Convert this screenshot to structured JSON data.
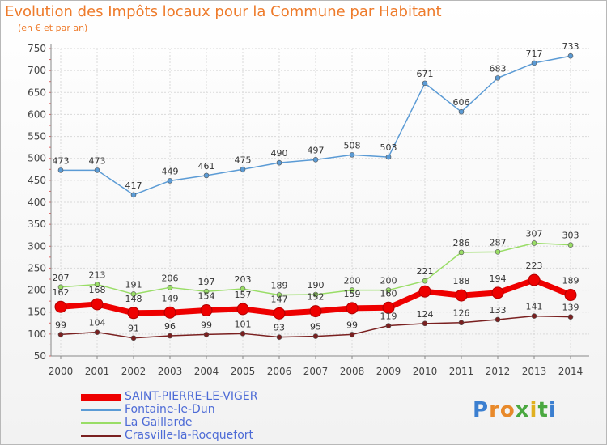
{
  "title": "Evolution des Impôts locaux pour la Commune par Habitant",
  "subtitle": "(en € et par an)",
  "brand": "Proxiti",
  "chart_data": {
    "type": "line",
    "x": [
      2000,
      2001,
      2002,
      2003,
      2004,
      2005,
      2006,
      2007,
      2008,
      2009,
      2010,
      2011,
      2012,
      2013,
      2014
    ],
    "ylim": [
      50,
      750
    ],
    "yticks": [
      50,
      100,
      150,
      200,
      250,
      300,
      350,
      400,
      450,
      500,
      550,
      600,
      650,
      700,
      750
    ],
    "grid": true,
    "legend_position": "bottom",
    "series": [
      {
        "name": "SAINT-PIERRE-LE-VIGER",
        "color": "#ee0000",
        "values": [
          162,
          168,
          148,
          149,
          154,
          157,
          147,
          152,
          159,
          160,
          197,
          188,
          194,
          223,
          189
        ],
        "labels": [
          162,
          168,
          148,
          149,
          154,
          157,
          147,
          152,
          159,
          160,
          null,
          188,
          194,
          223,
          189
        ]
      },
      {
        "name": "Fontaine-le-Dun",
        "color": "#5b9bd5",
        "values": [
          473,
          473,
          417,
          449,
          461,
          475,
          490,
          497,
          508,
          503,
          671,
          606,
          683,
          717,
          733
        ]
      },
      {
        "name": "La Gaillarde",
        "color": "#99dd66",
        "values": [
          207,
          213,
          191,
          206,
          197,
          203,
          189,
          190,
          200,
          200,
          221,
          286,
          287,
          307,
          303
        ]
      },
      {
        "name": "Crasville-la-Rocquefort",
        "color": "#7a2020",
        "values": [
          99,
          104,
          91,
          96,
          99,
          101,
          93,
          95,
          99,
          119,
          124,
          126,
          133,
          141,
          139
        ]
      }
    ]
  }
}
